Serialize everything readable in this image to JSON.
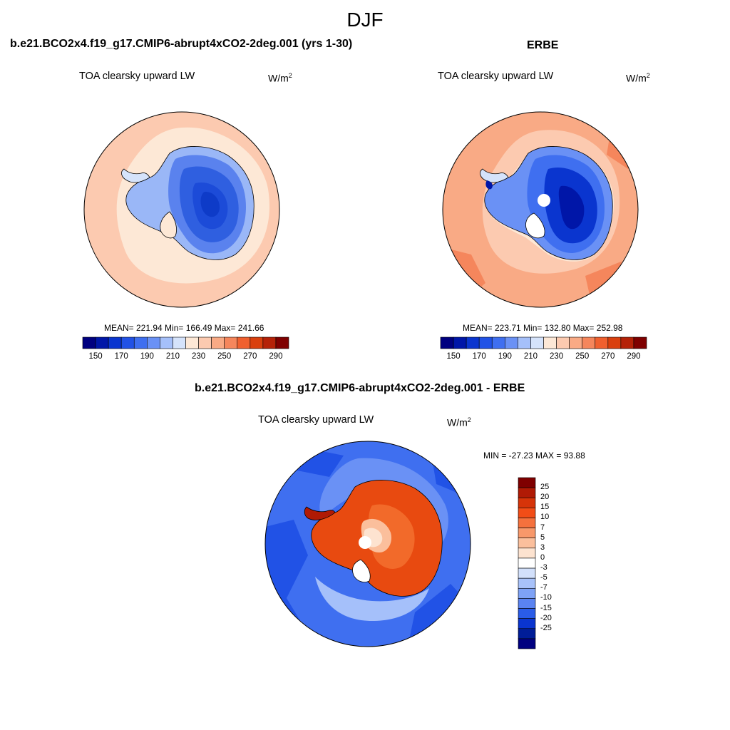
{
  "figure": {
    "title": "DJF"
  },
  "panels": [
    {
      "title": "b.e21.BCO2x4.f19_g17.CMIP6-abrupt4xCO2-2deg.001 (yrs 1-30)",
      "variable": "TOA clearsky upward LW",
      "units_base": "W/m",
      "units_exp": "2",
      "stats": "MEAN= 221.94  Min= 166.49  Max= 241.66",
      "colorbar_ticks": [
        "150",
        "170",
        "190",
        "210",
        "230",
        "250",
        "270",
        "290"
      ]
    },
    {
      "title": "ERBE",
      "variable": "TOA clearsky upward LW",
      "units_base": "W/m",
      "units_exp": "2",
      "stats": "MEAN= 223.71  Min= 132.80  Max= 252.98",
      "colorbar_ticks": [
        "150",
        "170",
        "190",
        "210",
        "230",
        "250",
        "270",
        "290"
      ]
    },
    {
      "title": "b.e21.BCO2x4.f19_g17.CMIP6-abrupt4xCO2-2deg.001 - ERBE",
      "variable": "TOA clearsky upward LW",
      "units_base": "W/m",
      "units_exp": "2",
      "stats": "MIN = -27.23 MAX =  93.88",
      "colorbar_ticks": [
        "25",
        "20",
        "15",
        "10",
        "7",
        "5",
        "3",
        "0",
        "-3",
        "-5",
        "-7",
        "-10",
        "-15",
        "-20",
        "-25"
      ]
    }
  ],
  "colors": {
    "abs_scale": [
      "#000080",
      "#0016a8",
      "#0a35cf",
      "#2152e6",
      "#3f6ff0",
      "#6a91f5",
      "#a5c0fa",
      "#d5e3fb",
      "#fde8d6",
      "#fccab0",
      "#f9aa85",
      "#f5865c",
      "#f0602f",
      "#d9400e",
      "#b52208",
      "#7f0000"
    ],
    "diff_scale": [
      "#7f0000",
      "#b01a05",
      "#d63409",
      "#f24d17",
      "#f5713d",
      "#f8986a",
      "#fbbf9c",
      "#fde3d0",
      "#ffffff",
      "#d2e0fb",
      "#a8c2fa",
      "#7ea2f6",
      "#5a83f1",
      "#2a5ce8",
      "#0a35cf",
      "#001d98",
      "#000080"
    ],
    "land_model": [
      "#9ab7f7",
      "#5a82ee",
      "#2f5fe0",
      "#1c4bd8",
      "#0e3bc8"
    ],
    "ocean_model": [
      "#fccab0",
      "#fde8d6"
    ],
    "ocean_erbe": [
      "#f9aa85",
      "#f5865c",
      "#fccab0"
    ],
    "land_diff": [
      "#e84a10",
      "#f26a2a",
      "#fbbf9c"
    ],
    "ocean_diff": [
      "#2152e6",
      "#3f6ff0",
      "#6a91f5",
      "#a5c0fa"
    ]
  }
}
